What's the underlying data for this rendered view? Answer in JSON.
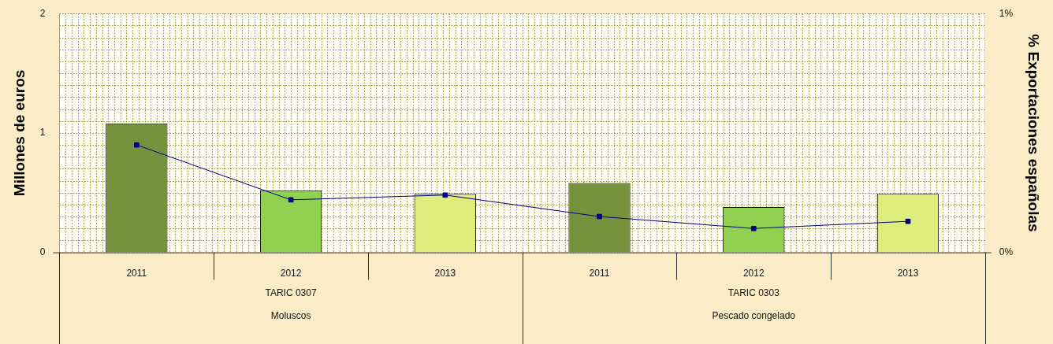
{
  "chart_data": {
    "type": "bar",
    "categories": [
      "2011",
      "2012",
      "2013",
      "2011",
      "2012",
      "2013"
    ],
    "series": [
      {
        "colors": [
          "#76923c",
          "#92d050",
          "#dfed7d",
          "#76923c",
          "#92d050",
          "#dfed7d"
        ],
        "values": [
          1.08,
          0.52,
          0.49,
          0.58,
          0.38,
          0.49
        ]
      },
      {
        "type": "line",
        "axis": "y2",
        "color": "#000080",
        "marker": "square",
        "values": [
          0.45,
          0.22,
          0.24,
          0.15,
          0.1,
          0.13
        ]
      }
    ],
    "ylabel": "Millones de euros",
    "y2label": "% Exportaciones españolas",
    "ylim": [
      0,
      2
    ],
    "yticks": [
      0,
      1,
      2
    ],
    "y2lim": [
      0,
      1
    ],
    "y2ticks": [
      {
        "value": 0,
        "label": "0%"
      },
      {
        "value": 1,
        "label": "1%"
      }
    ],
    "annotations": [
      "TARIC 0307",
      "Moluscos",
      "TARIC 0303",
      "Pescado congelado"
    ],
    "grid": true,
    "legend": false
  }
}
